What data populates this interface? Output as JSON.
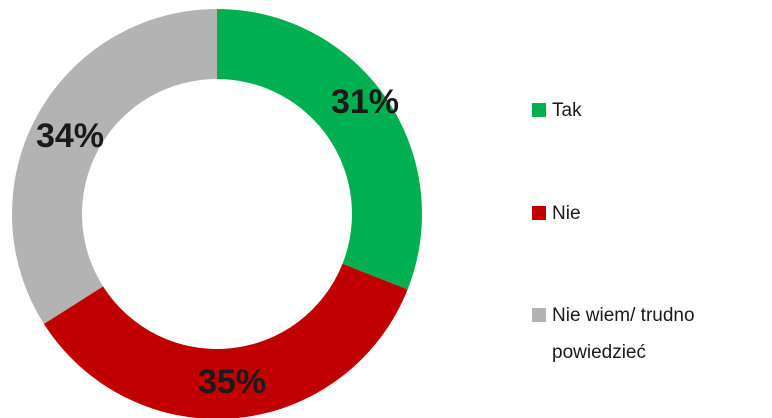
{
  "chart_data": {
    "type": "donut",
    "categories": [
      "Tak",
      "Nie",
      "Nie wiem/ trudno powiedzieć"
    ],
    "values": [
      31,
      35,
      34
    ],
    "value_labels": [
      "31%",
      "35%",
      "34%"
    ],
    "colors": [
      "#00b050",
      "#c00000",
      "#b3b3b3"
    ],
    "legend": "right"
  }
}
